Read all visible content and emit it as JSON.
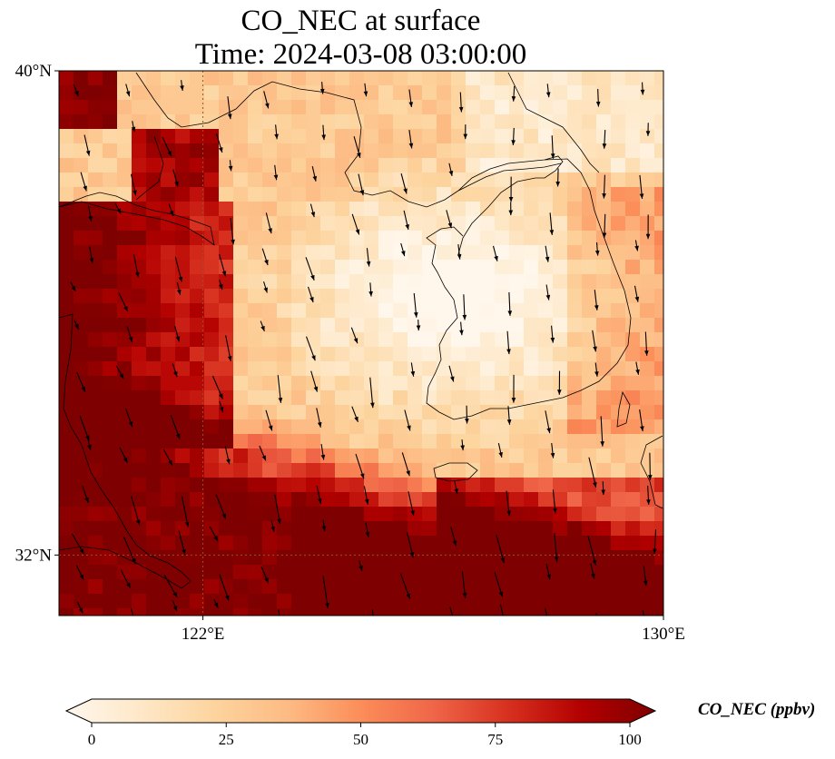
{
  "title": {
    "line1": "CO_NEC at surface",
    "line2": "Time: 2024-03-08 03:00:00"
  },
  "map": {
    "lon_range": [
      119.5,
      130
    ],
    "lat_range": [
      31,
      40
    ],
    "lat_ticks": [
      {
        "value": 40,
        "label": "40°N"
      },
      {
        "value": 32,
        "label": "32°N"
      }
    ],
    "lon_ticks": [
      {
        "value": 122,
        "label": "122°E"
      },
      {
        "value": 130,
        "label": "130°E"
      }
    ],
    "gridlines": {
      "lat": [
        32
      ],
      "lon": [
        122
      ],
      "style": "dotted"
    },
    "field_description_hint": "CO concentration field with wind vectors and coastlines"
  },
  "colorbar": {
    "label": "CO_NEC (ppbv)",
    "min": 0,
    "max": 100,
    "ticks": [
      {
        "value": 0,
        "label": "0"
      },
      {
        "value": 25,
        "label": "25"
      },
      {
        "value": 50,
        "label": "50"
      },
      {
        "value": 75,
        "label": "75"
      },
      {
        "value": 100,
        "label": "100"
      }
    ],
    "colormap": [
      "#fff7ec",
      "#fee8c8",
      "#fdd49e",
      "#fdbb84",
      "#fc8d59",
      "#ef6548",
      "#d7301f",
      "#b30000",
      "#7f0000"
    ],
    "extend": "both"
  },
  "colors": {
    "frame": "#000000",
    "coastline": "#000000",
    "grid": "#8b5a2b"
  }
}
